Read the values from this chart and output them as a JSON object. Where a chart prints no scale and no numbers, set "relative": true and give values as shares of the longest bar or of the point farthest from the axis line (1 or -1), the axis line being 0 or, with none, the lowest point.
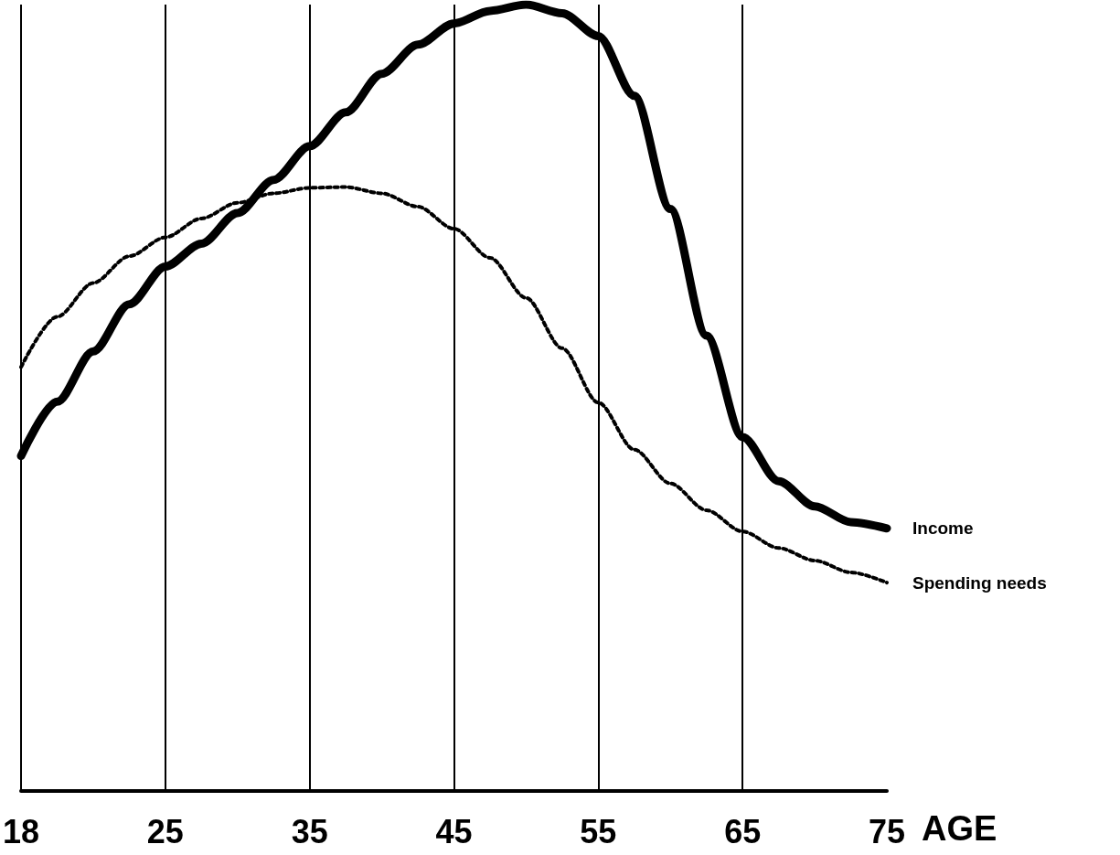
{
  "chart_data": {
    "type": "line",
    "relative": true,
    "xlabel": "AGE",
    "categories": [
      "18",
      null,
      null,
      null,
      "25",
      null,
      null,
      null,
      "35",
      null,
      null,
      null,
      "45",
      null,
      null,
      null,
      "55",
      null,
      null,
      null,
      "65",
      null,
      null,
      null,
      "75"
    ],
    "series": [
      {
        "name": "Income",
        "color": "#000000",
        "line_style": "solid",
        "values": [
          0.426,
          0.495,
          0.559,
          0.619,
          0.667,
          0.696,
          0.735,
          0.777,
          0.82,
          0.863,
          0.912,
          0.949,
          0.976,
          0.992,
          1.0,
          0.989,
          0.96,
          0.884,
          0.74,
          0.579,
          0.45,
          0.394,
          0.362,
          0.342,
          0.334
        ]
      },
      {
        "name": "Spending needs",
        "color": "#000000",
        "line_style": "dotted",
        "values": [
          0.539,
          0.603,
          0.646,
          0.68,
          0.704,
          0.728,
          0.748,
          0.76,
          0.767,
          0.768,
          0.76,
          0.743,
          0.715,
          0.678,
          0.627,
          0.563,
          0.494,
          0.434,
          0.391,
          0.357,
          0.33,
          0.309,
          0.293,
          0.278,
          0.265
        ]
      }
    ],
    "grid": "x",
    "legend": false,
    "marker": "none"
  }
}
